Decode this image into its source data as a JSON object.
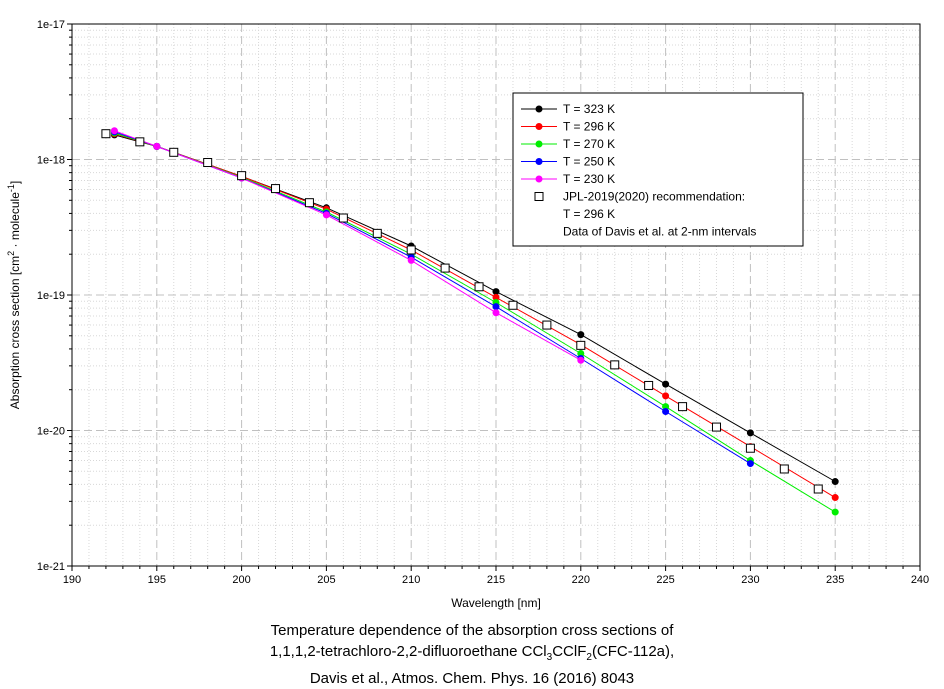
{
  "chart_data": {
    "type": "line",
    "title": "",
    "xlabel": "Wavelength [nm]",
    "ylabel": {
      "prefix": "Absorption cross section [cm",
      "sup1": "2",
      "mid": " · molecule",
      "sup2": "-1",
      "suffix": "]"
    },
    "xlim": [
      190,
      240
    ],
    "ylim": [
      1e-21,
      1e-17
    ],
    "yscale": "log",
    "grid": true,
    "x_ticks": [
      "190",
      "195",
      "200",
      "205",
      "210",
      "215",
      "220",
      "225",
      "230",
      "235",
      "240"
    ],
    "y_ticks": [
      "1e-21",
      "1e-20",
      "1e-19",
      "1e-18",
      "1e-17"
    ],
    "legend_position": "top-right",
    "series": [
      {
        "name": "T = 323 K",
        "color": "#000000",
        "x": [
          192.5,
          195,
          200,
          205,
          210,
          215,
          220,
          225,
          230,
          235
        ],
        "y": [
          1.52e-18,
          1.25e-18,
          7.5e-19,
          4.4e-19,
          2.3e-19,
          1.06e-19,
          5.1e-20,
          2.2e-20,
          9.6e-21,
          4.2e-21
        ]
      },
      {
        "name": "T = 296 K",
        "color": "#ff0000",
        "x": [
          192.5,
          195,
          200,
          205,
          210,
          215,
          220,
          225,
          230,
          235
        ],
        "y": [
          1.55e-18,
          1.25e-18,
          7.5e-19,
          4.3e-19,
          2.15e-19,
          9.6e-20,
          4.3e-20,
          1.8e-20,
          7.6e-21,
          3.2e-21
        ]
      },
      {
        "name": "T = 270 K",
        "color": "#00ee00",
        "x": [
          192.5,
          195,
          200,
          205,
          210,
          215,
          220,
          225,
          230,
          235
        ],
        "y": [
          1.57e-18,
          1.25e-18,
          7.4e-19,
          4.1e-19,
          2e-19,
          8.8e-20,
          3.7e-20,
          1.5e-20,
          6e-21,
          2.5e-21
        ]
      },
      {
        "name": "T = 250 K",
        "color": "#0000ff",
        "x": [
          192.5,
          195,
          200,
          205,
          210,
          215,
          220,
          225,
          230
        ],
        "y": [
          1.6e-18,
          1.25e-18,
          7.3e-19,
          4e-19,
          1.9e-19,
          8.2e-20,
          3.4e-20,
          1.38e-20,
          5.7e-21
        ]
      },
      {
        "name": "T = 230 K",
        "color": "#ff00ff",
        "x": [
          192.5,
          195,
          200,
          205,
          210,
          215,
          220
        ],
        "y": [
          1.63e-18,
          1.25e-18,
          7.3e-19,
          3.9e-19,
          1.8e-19,
          7.4e-20,
          3.3e-20
        ]
      },
      {
        "name": "JPL-2019(2020) recommendation:",
        "extra_lines": [
          "T = 296 K",
          "Data of Davis et al. at 2-nm intervals"
        ],
        "marker": "open-square",
        "color": "#000000",
        "x": [
          192,
          194,
          196,
          198,
          200,
          202,
          204,
          206,
          208,
          210,
          212,
          214,
          216,
          218,
          220,
          222,
          224,
          226,
          228,
          230,
          232,
          234
        ],
        "y": [
          1.55e-18,
          1.35e-18,
          1.13e-18,
          9.5e-19,
          7.6e-19,
          6.1e-19,
          4.8e-19,
          3.7e-19,
          2.85e-19,
          2.15e-19,
          1.58e-19,
          1.15e-19,
          8.4e-20,
          6e-20,
          4.25e-20,
          3.05e-20,
          2.15e-20,
          1.5e-20,
          1.06e-20,
          7.4e-21,
          5.2e-21,
          3.7e-21
        ]
      }
    ]
  },
  "caption": {
    "line1": "Temperature dependence of the absorption cross sections of",
    "line2_a": "1,1,1,2-tetrachloro-2,2-difluoroethane CCl",
    "line2_sub1": "3",
    "line2_b": "CClF",
    "line2_sub2": "2",
    "line2_c": "(CFC-112a),",
    "line3": "Davis et al., Atmos. Chem. Phys. 16 (2016) 8043"
  }
}
